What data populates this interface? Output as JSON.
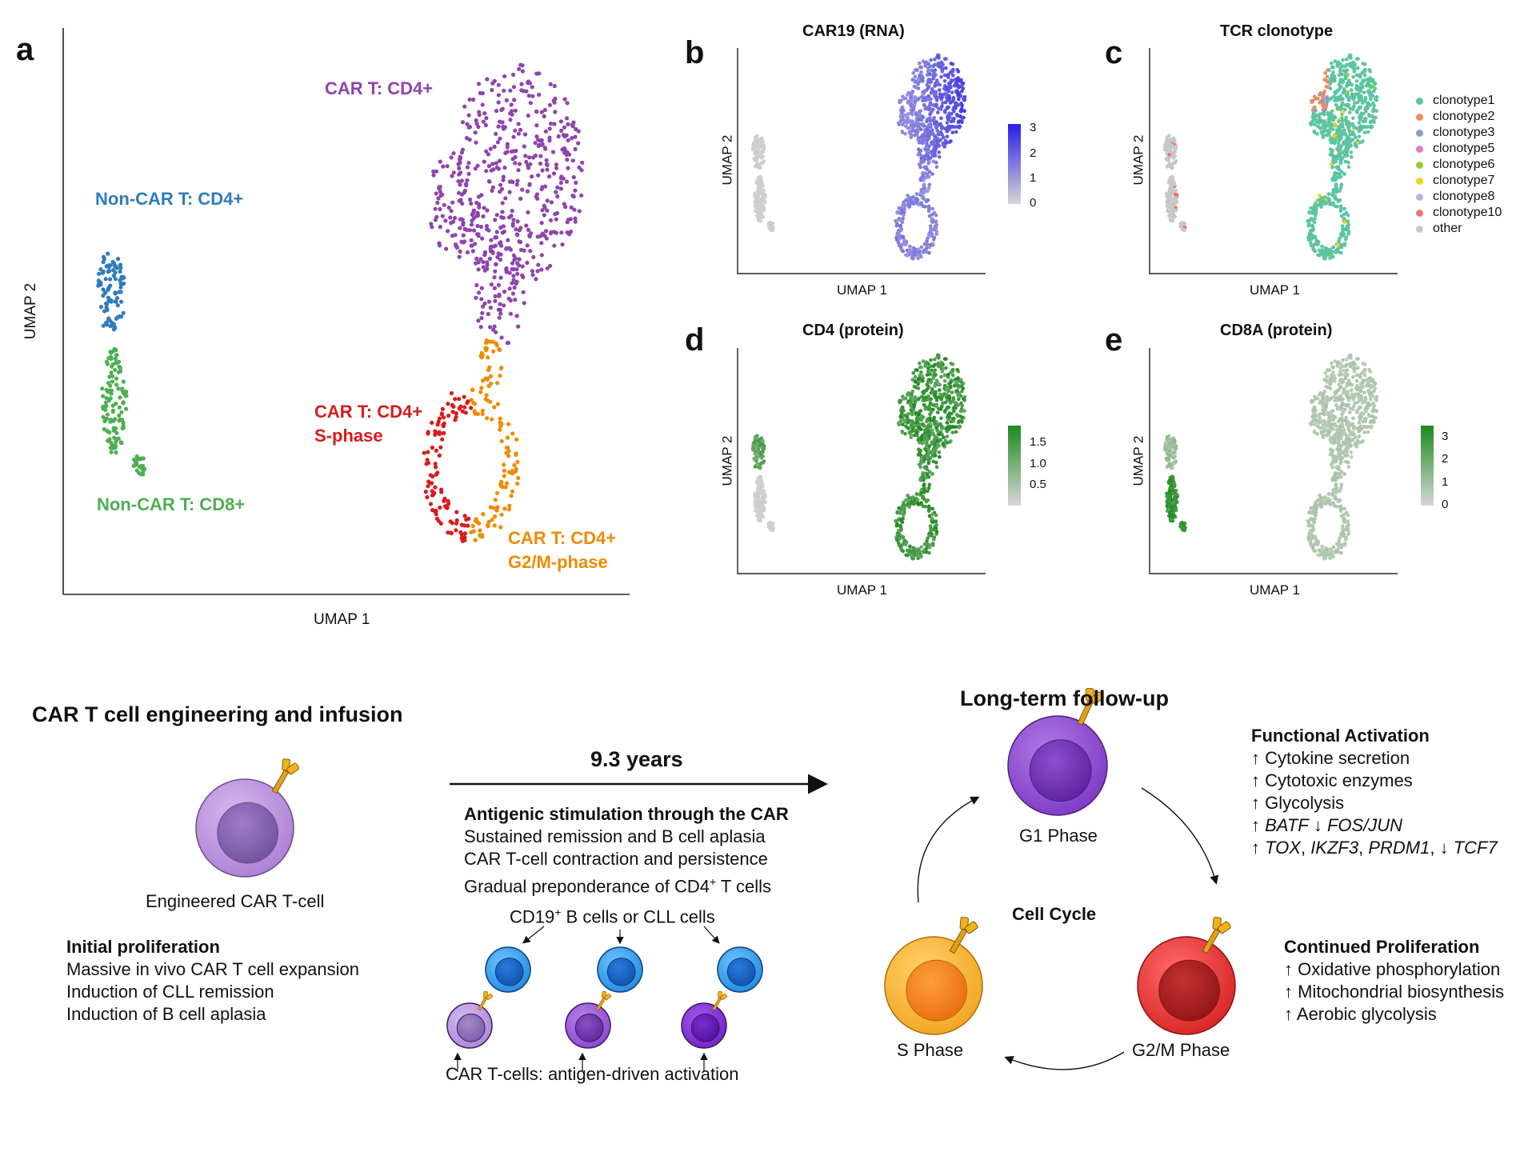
{
  "panel_a": {
    "letter": "a",
    "xlabel": "UMAP 1",
    "ylabel": "UMAP 2",
    "clusters": [
      {
        "label": "CAR T: CD4+",
        "color": "#8e44ad"
      },
      {
        "label": "Non-CAR T: CD4+",
        "color": "#2f7bbf"
      },
      {
        "label": "Non-CAR T: CD8+",
        "color": "#4caf50"
      },
      {
        "label": "CAR T: CD4+\nS-phase",
        "color": "#d81b1b"
      },
      {
        "label": "CAR T: CD4+\nG2/M-phase",
        "color": "#f08a00"
      }
    ]
  },
  "panel_b": {
    "letter": "b",
    "title": "CAR19 (RNA)",
    "xlabel": "UMAP 1",
    "ylabel": "UMAP 2",
    "colorbar": {
      "ticks": [
        "3",
        "2",
        "1",
        "0"
      ],
      "low": "#d6d6d6",
      "high": "#2a1ee6"
    }
  },
  "panel_c": {
    "letter": "c",
    "title": "TCR clonotype",
    "xlabel": "UMAP 1",
    "ylabel": "UMAP 2",
    "legend": [
      {
        "label": "clonotype1",
        "color": "#5cc4a0"
      },
      {
        "label": "clonotype2",
        "color": "#f08a5a"
      },
      {
        "label": "clonotype3",
        "color": "#8a9ccc"
      },
      {
        "label": "clonotype5",
        "color": "#e07bc0"
      },
      {
        "label": "clonotype6",
        "color": "#9ccc3a"
      },
      {
        "label": "clonotype7",
        "color": "#f2d21b"
      },
      {
        "label": "clonotype8",
        "color": "#b6b3d8"
      },
      {
        "label": "clonotype10",
        "color": "#f07468"
      },
      {
        "label": "other",
        "color": "#c8c8c8"
      }
    ]
  },
  "panel_d": {
    "letter": "d",
    "title": "CD4 (protein)",
    "xlabel": "UMAP 1",
    "ylabel": "UMAP 2",
    "colorbar": {
      "ticks": [
        "1.5",
        "1.0",
        "0.5"
      ],
      "low": "#d6d6d6",
      "high": "#1e8a1e"
    }
  },
  "panel_e": {
    "letter": "e",
    "title": "CD8A (protein)",
    "xlabel": "UMAP 1",
    "ylabel": "UMAP 2",
    "colorbar": {
      "ticks": [
        "3",
        "2",
        "1",
        "0"
      ],
      "low": "#d6d6d6",
      "high": "#1e8a1e"
    }
  },
  "schematic": {
    "engineering_title": "CAR T cell engineering and infusion",
    "engineered_label": "Engineered CAR T-cell",
    "initial": {
      "heading": "Initial proliferation",
      "items": [
        "Massive in vivo CAR T cell expansion",
        "Induction of CLL remission",
        "Induction of B cell aplasia"
      ]
    },
    "years": "9.3 years",
    "antigenic": {
      "heading": "Antigenic stimulation through the CAR",
      "items": [
        "Sustained remission and B cell aplasia",
        "CAR T-cell contraction and persistence"
      ],
      "last_prefix": "Gradual preponderance of CD4",
      "last_sup": "+",
      "last_suffix": " T cells"
    },
    "cd19_prefix": "CD19",
    "cd19_sup": "+",
    "cd19_suffix": " B cells or CLL cells",
    "car_activation": "CAR T-cells: antigen-driven activation",
    "followup_title": "Long-term follow-up",
    "cell_cycle": "Cell Cycle",
    "g1": "G1 Phase",
    "s": "S Phase",
    "g2m": "G2/M Phase",
    "functional": {
      "heading": "Functional Activation",
      "l1": "↑ Cytokine secretion",
      "l2": "↑ Cytotoxic enzymes",
      "l3": "↑ Glycolysis",
      "l4a": "↑ ",
      "l4b": "BATF",
      "l4c": " ↓ ",
      "l4d": "FOS/JUN",
      "l5a": "↑ ",
      "l5b": "TOX",
      "l5c": ", ",
      "l5d": "IKZF3",
      "l5e": ", ",
      "l5f": "PRDM1",
      "l5g": ", ↓ ",
      "l5h": "TCF7"
    },
    "continued": {
      "heading": "Continued Proliferation",
      "items": [
        "↑ Oxidative phosphorylation",
        "↑ Mitochondrial biosynthesis",
        "↑ Aerobic glycolysis"
      ]
    }
  }
}
